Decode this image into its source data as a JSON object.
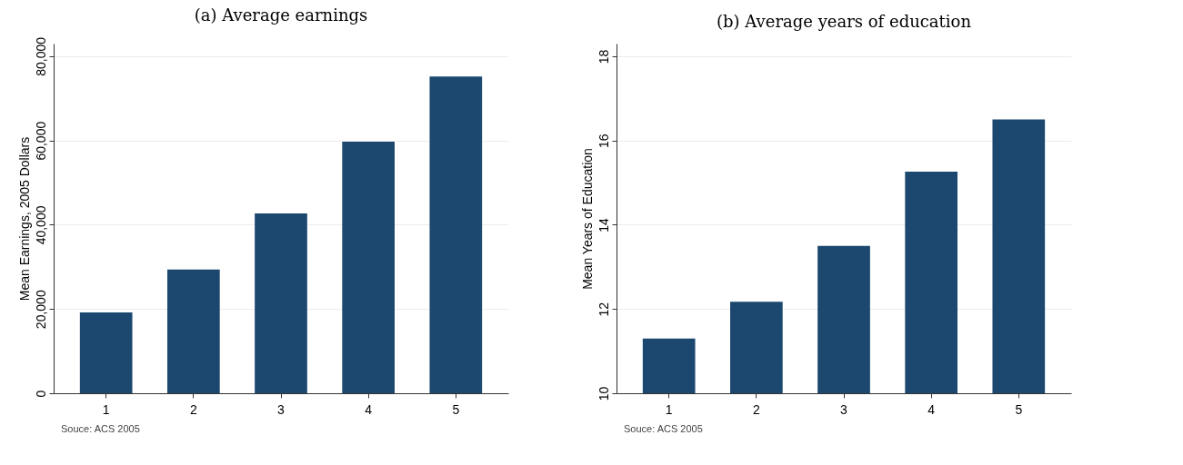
{
  "chart_data": [
    {
      "type": "bar",
      "title": "(a) Average earnings",
      "ylabel": "Mean Earnings, 2005 Dollars",
      "categories": [
        "1",
        "2",
        "3",
        "4",
        "5"
      ],
      "values": [
        19200,
        29400,
        42700,
        59700,
        75200
      ],
      "color": "#1c4870",
      "ylim": [
        0,
        83000
      ],
      "yticks": [
        0,
        {
          "value": 20000,
          "label": "20,000"
        },
        {
          "value": 40000,
          "label": "40,000"
        },
        {
          "value": 60000,
          "label": "60,000"
        },
        {
          "value": 80000,
          "label": "80,000"
        }
      ],
      "grid": "y",
      "annotations": [
        "Souce: ACS 2005"
      ]
    },
    {
      "type": "bar",
      "title": "(b) Average years of education",
      "ylabel": "Mean Years of Education",
      "categories": [
        "1",
        "2",
        "3",
        "4",
        "5"
      ],
      "values": [
        11.3,
        12.17,
        13.5,
        15.26,
        16.5
      ],
      "color": "#1c4870",
      "ylim": [
        10,
        18.3
      ],
      "yticks": [
        10,
        12,
        14,
        16,
        18
      ],
      "grid": "y",
      "annotations": [
        "Souce: ACS 2005"
      ]
    }
  ]
}
